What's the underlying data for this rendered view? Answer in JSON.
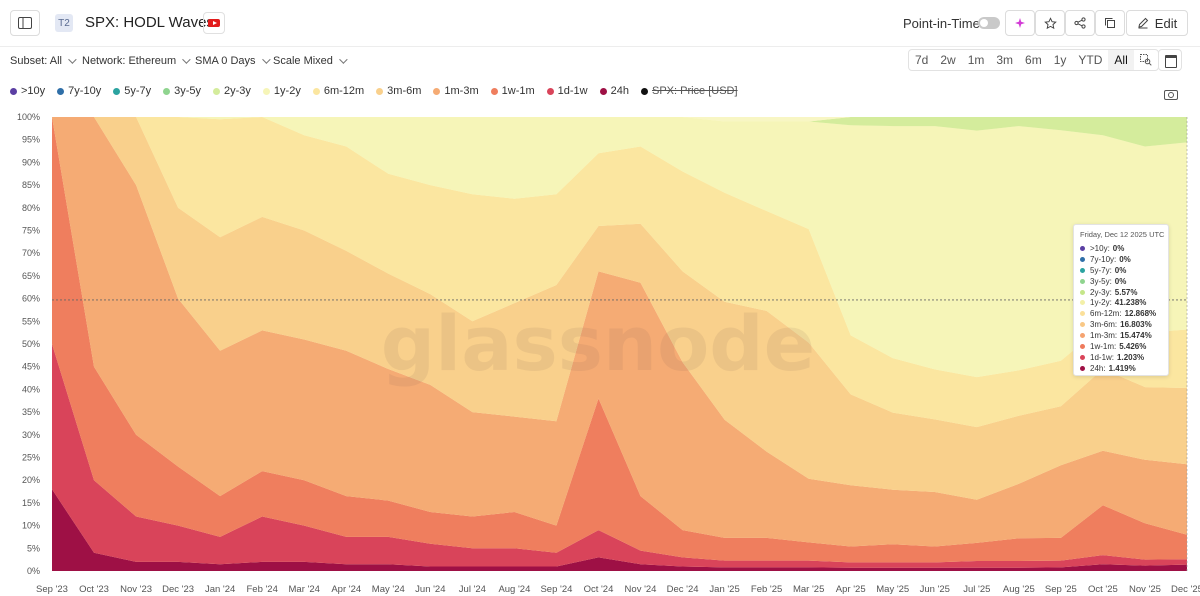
{
  "header": {
    "badge": "T2",
    "title": "SPX: HODL Waves",
    "point_in_time_label": "Point-in-Time",
    "edit_label": "Edit"
  },
  "controls": {
    "subset": "Subset: All",
    "network": "Network: Ethereum",
    "sma": "SMA 0 Days",
    "scale": "Scale Mixed"
  },
  "ranges": [
    "7d",
    "2w",
    "1m",
    "3m",
    "6m",
    "1y",
    "YTD",
    "All"
  ],
  "active_range": "All",
  "legend": [
    {
      "label": ">10y",
      "color": "#5b3fa3"
    },
    {
      "label": "7y-10y",
      "color": "#2f6fa8"
    },
    {
      "label": "5y-7y",
      "color": "#2ba3a0"
    },
    {
      "label": "3y-5y",
      "color": "#8fd48f"
    },
    {
      "label": "2y-3y",
      "color": "#d4ec9c"
    },
    {
      "label": "1y-2y",
      "color": "#f6f5b8"
    },
    {
      "label": "6m-12m",
      "color": "#fbe6a0"
    },
    {
      "label": "3m-6m",
      "color": "#f9d08c"
    },
    {
      "label": "1m-3m",
      "color": "#f5ab74"
    },
    {
      "label": "1w-1m",
      "color": "#ef7e5e"
    },
    {
      "label": "1d-1w",
      "color": "#d9445a"
    },
    {
      "label": "24h",
      "color": "#9e1045"
    },
    {
      "label": "SPX: Price [USD]",
      "color": "#111111",
      "disabled": true
    }
  ],
  "tooltip": {
    "date": "Friday, Dec 12 2025 UTC",
    "rows": [
      {
        "label": ">10y:",
        "value": "0%",
        "color": "#5b3fa3"
      },
      {
        "label": "7y-10y:",
        "value": "0%",
        "color": "#2f6fa8"
      },
      {
        "label": "5y-7y:",
        "value": "0%",
        "color": "#2ba3a0"
      },
      {
        "label": "3y-5y:",
        "value": "0%",
        "color": "#8fd48f"
      },
      {
        "label": "2y-3y:",
        "value": "5.57%",
        "color": "#c5e68a"
      },
      {
        "label": "1y-2y:",
        "value": "41.238%",
        "color": "#f3f0a8"
      },
      {
        "label": "6m-12m:",
        "value": "12.868%",
        "color": "#fbe09a"
      },
      {
        "label": "3m-6m:",
        "value": "16.803%",
        "color": "#f9c886"
      },
      {
        "label": "1m-3m:",
        "value": "15.474%",
        "color": "#f5a370"
      },
      {
        "label": "1w-1m:",
        "value": "5.426%",
        "color": "#ee7a5c"
      },
      {
        "label": "1d-1w:",
        "value": "1.203%",
        "color": "#d94459"
      },
      {
        "label": "24h:",
        "value": "1.419%",
        "color": "#9e1045"
      }
    ]
  },
  "chart_data": {
    "type": "area",
    "stacked": true,
    "title": "SPX: HODL Waves",
    "watermark": "glassnode",
    "y_ticks": [
      "0%",
      "5%",
      "10%",
      "15%",
      "20%",
      "25%",
      "30%",
      "35%",
      "40%",
      "45%",
      "50%",
      "55%",
      "60%",
      "65%",
      "70%",
      "75%",
      "80%",
      "85%",
      "90%",
      "95%",
      "100%"
    ],
    "ylim": [
      0,
      100
    ],
    "x_ticks": [
      "Sep '23",
      "Oct '23",
      "Nov '23",
      "Dec '23",
      "Jan '24",
      "Feb '24",
      "Mar '24",
      "Apr '24",
      "May '24",
      "Jun '24",
      "Jul '24",
      "Aug '24",
      "Sep '24",
      "Oct '24",
      "Nov '24",
      "Dec '24",
      "Jan '25",
      "Feb '25",
      "Mar '25",
      "Apr '25",
      "May '25",
      "Jun '25",
      "Jul '25",
      "Aug '25",
      "Sep '25",
      "Oct '25",
      "Nov '25",
      "Dec '25"
    ],
    "crosshair_y": 59.7,
    "x": [
      "Sep '23",
      "Oct '23",
      "Nov '23",
      "Dec '23",
      "Jan '24",
      "Feb '24",
      "Mar '24",
      "Apr '24",
      "May '24",
      "Jun '24",
      "Jul '24",
      "Aug '24",
      "Sep '24",
      "Oct '24",
      "Nov '24",
      "Dec '24",
      "Jan '25",
      "Feb '25",
      "Mar '25",
      "Apr '25",
      "May '25",
      "Jun '25",
      "Jul '25",
      "Aug '25",
      "Sep '25",
      "Oct '25",
      "Nov '25",
      "Dec '25"
    ],
    "series": [
      {
        "name": "24h",
        "color": "#9e1045",
        "values": [
          18,
          4,
          2,
          2,
          1.5,
          2,
          2,
          1.5,
          1.5,
          1,
          1,
          1,
          1,
          3,
          1.5,
          1,
          0.8,
          0.8,
          0.8,
          0.7,
          0.7,
          0.7,
          0.7,
          0.7,
          0.8,
          1.5,
          1.2,
          1.4
        ]
      },
      {
        "name": "1d-1w",
        "color": "#d9445a",
        "values": [
          32,
          16,
          10,
          8,
          6,
          10,
          8,
          6,
          6,
          5,
          4,
          4,
          3,
          6,
          3,
          2,
          1.5,
          1.5,
          1.5,
          1.2,
          1.2,
          1.2,
          1.5,
          1.5,
          1.5,
          2,
          1.3,
          1.2
        ]
      },
      {
        "name": "1w-1m",
        "color": "#ef7e5e",
        "values": [
          50,
          25,
          18,
          13,
          9,
          10,
          10,
          9,
          8,
          7,
          7,
          8,
          6,
          29,
          12,
          6,
          5,
          5,
          4,
          3.5,
          4,
          3.5,
          4,
          5,
          5,
          11,
          8,
          5.4
        ]
      },
      {
        "name": "1m-3m",
        "color": "#f5ab74",
        "values": [
          0,
          55,
          55,
          37,
          32,
          31,
          31,
          32,
          29,
          28,
          23,
          21,
          23,
          28,
          47,
          37,
          26,
          19,
          14,
          13.5,
          12,
          12,
          9.5,
          12,
          16,
          12,
          14,
          15.5
        ]
      },
      {
        "name": "3m-6m",
        "color": "#f9d08c",
        "values": [
          0,
          0,
          15,
          20,
          25,
          25,
          24,
          22,
          21,
          20,
          20,
          25,
          30,
          10,
          13,
          20,
          26,
          31,
          30,
          20,
          17,
          16,
          16,
          15,
          13,
          18,
          16,
          16.8
        ]
      },
      {
        "name": "6m-12m",
        "color": "#fbe6a0",
        "values": [
          0,
          0,
          0,
          20,
          26,
          22,
          21,
          23,
          22,
          24,
          28,
          23,
          20,
          16,
          17,
          22,
          24,
          22,
          25,
          13,
          12,
          11,
          11,
          10,
          10,
          9.5,
          12,
          12.9
        ]
      },
      {
        "name": "1y-2y",
        "color": "#f6f5b8",
        "values": [
          0,
          0,
          0,
          0,
          0.5,
          0,
          4,
          6.5,
          12.5,
          15,
          17,
          18,
          17,
          8,
          6.5,
          12,
          15.7,
          19.7,
          23.7,
          46.3,
          51.1,
          53.6,
          54.3,
          53.8,
          50.8,
          42,
          41,
          41.2
        ]
      },
      {
        "name": "2y-3y",
        "color": "#d4ec9c",
        "values": [
          0,
          0,
          0,
          0,
          0,
          0,
          0,
          0,
          0,
          0,
          0,
          0,
          0,
          0,
          0,
          0,
          0,
          0,
          0,
          2,
          2,
          2,
          3,
          2,
          3,
          4,
          6.5,
          5.6
        ]
      },
      {
        "name": "3y-5y",
        "color": "#8fd48f",
        "values": [
          0,
          0,
          0,
          0,
          0,
          0,
          0,
          0,
          0,
          0,
          0,
          0,
          0,
          0,
          0,
          0,
          0,
          0,
          0,
          0,
          0,
          0,
          0,
          0,
          0,
          0,
          0,
          0
        ]
      },
      {
        "name": "5y-7y",
        "color": "#2ba3a0",
        "values": [
          0,
          0,
          0,
          0,
          0,
          0,
          0,
          0,
          0,
          0,
          0,
          0,
          0,
          0,
          0,
          0,
          0,
          0,
          0,
          0,
          0,
          0,
          0,
          0,
          0,
          0,
          0,
          0
        ]
      },
      {
        "name": "7y-10y",
        "color": "#2f6fa8",
        "values": [
          0,
          0,
          0,
          0,
          0,
          0,
          0,
          0,
          0,
          0,
          0,
          0,
          0,
          0,
          0,
          0,
          0,
          0,
          0,
          0,
          0,
          0,
          0,
          0,
          0,
          0,
          0,
          0
        ]
      },
      {
        "name": ">10y",
        "color": "#5b3fa3",
        "values": [
          0,
          0,
          0,
          0,
          0,
          0,
          0,
          0,
          0,
          0,
          0,
          0,
          0,
          0,
          0,
          0,
          0,
          0,
          0,
          0,
          0,
          0,
          0,
          0,
          0,
          0,
          0,
          0
        ]
      }
    ]
  }
}
